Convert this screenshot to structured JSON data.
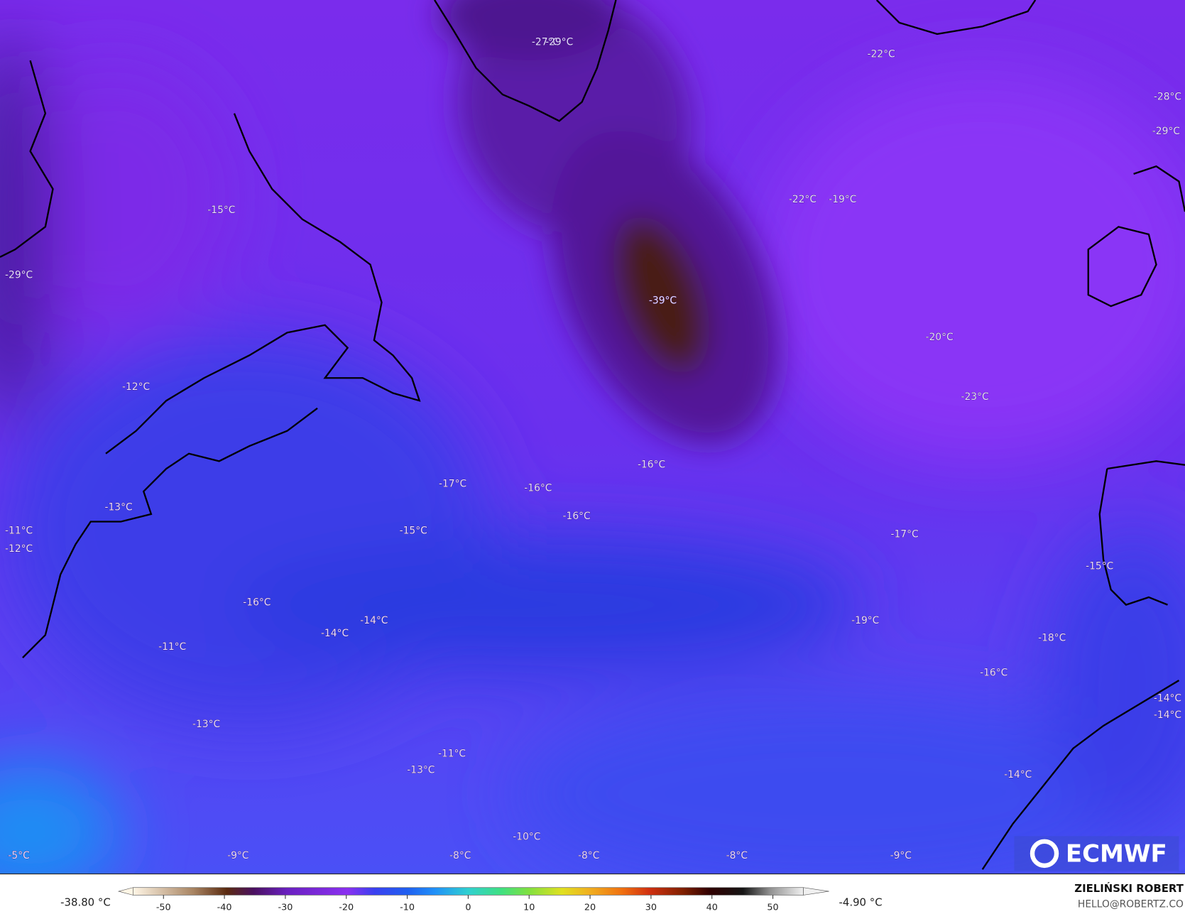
{
  "map": {
    "temperature_labels": [
      "-27°C",
      "-29°C",
      "-22°C",
      "-28°C",
      "-29°C",
      "-15°C",
      "-29°C",
      "-22°C",
      "-19°C",
      "-39°C",
      "-20°C",
      "-23°C",
      "-12°C",
      "-16°C",
      "-17°C",
      "-16°C",
      "-16°C",
      "-13°C",
      "-11°C",
      "-12°C",
      "-15°C",
      "-17°C",
      "-15°C",
      "-16°C",
      "-14°C",
      "-14°C",
      "-19°C",
      "-18°C",
      "-11°C",
      "-16°C",
      "-14°C",
      "-14°C",
      "-13°C",
      "-11°C",
      "-13°C",
      "-14°C",
      "-10°C",
      "-5°C",
      "-9°C",
      "-8°C",
      "-8°C",
      "-8°C",
      "-9°C"
    ],
    "logo": "ECMWF"
  },
  "colorbar": {
    "lim": [
      -55,
      55
    ],
    "ticks": [
      -50,
      -40,
      -30,
      -20,
      -10,
      0,
      10,
      20,
      30,
      40,
      50
    ],
    "min_label": "-38.80 °C",
    "max_label": "-4.90 °C"
  },
  "credit": {
    "author": "ZIELIŃSKI ROBERT",
    "contact": "HELLO@ROBERTZ.CO"
  }
}
